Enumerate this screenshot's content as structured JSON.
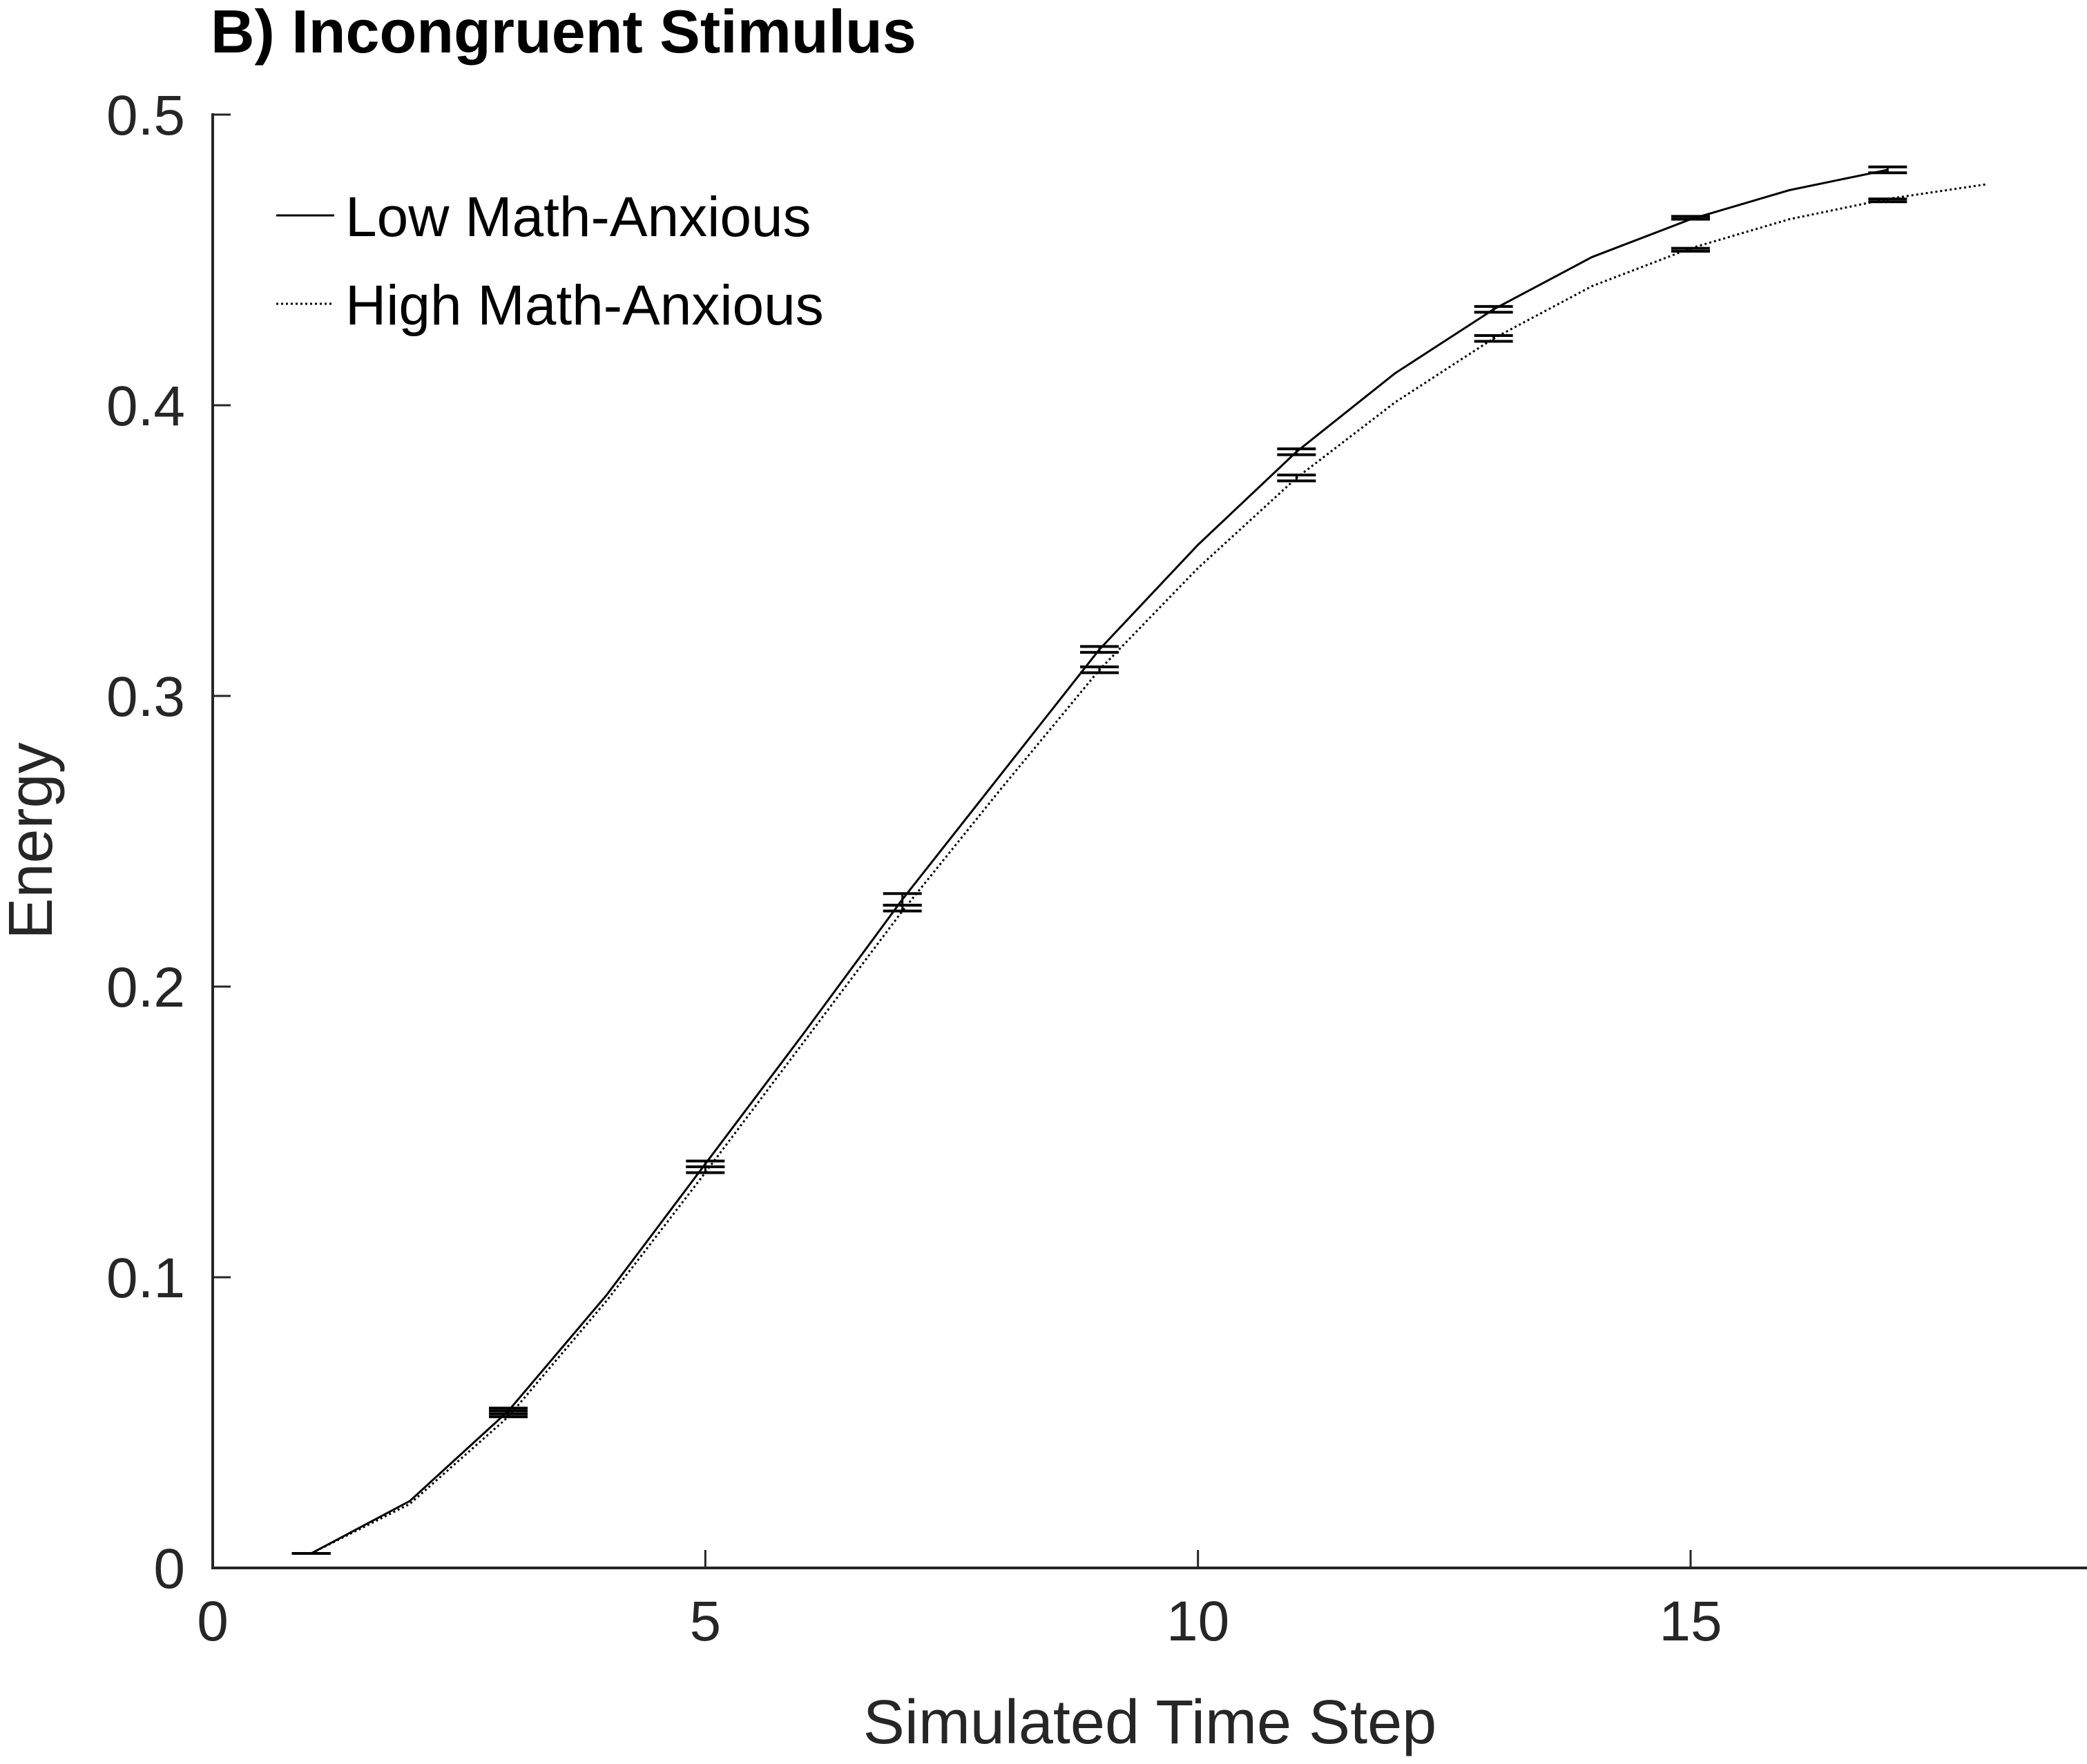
{
  "chart_data": {
    "type": "line",
    "title": "B) Incongruent Stimulus",
    "xlabel": "Simulated Time Step",
    "ylabel": "Energy",
    "xlim": [
      0,
      19
    ],
    "ylim": [
      0,
      0.5
    ],
    "xticks": [
      0,
      5,
      10,
      15
    ],
    "xtick_labels": [
      "0",
      "5",
      "10",
      "15"
    ],
    "yticks": [
      0,
      0.1,
      0.2,
      0.3,
      0.4,
      0.5
    ],
    "ytick_labels": [
      "0",
      "0.1",
      "0.2",
      "0.3",
      "0.4",
      "0.5"
    ],
    "grid": false,
    "legend_position": "top-left",
    "series": [
      {
        "name": "Low Math-Anxious",
        "style": "solid",
        "color": "#000000",
        "x": [
          1,
          2,
          3,
          4,
          5,
          6,
          7,
          8,
          9,
          10,
          11,
          12,
          13,
          14,
          15,
          16,
          17
        ],
        "y": [
          0.005,
          0.023,
          0.054,
          0.094,
          0.139,
          0.184,
          0.23,
          0.273,
          0.316,
          0.352,
          0.384,
          0.411,
          0.433,
          0.451,
          0.464,
          0.474,
          0.481
        ],
        "errorbars": [
          {
            "x": 1,
            "low": 0.005,
            "high": 0.005
          },
          {
            "x": 3,
            "low": 0.053,
            "high": 0.055
          },
          {
            "x": 5,
            "low": 0.138,
            "high": 0.14
          },
          {
            "x": 7,
            "low": 0.228,
            "high": 0.232
          },
          {
            "x": 9,
            "low": 0.315,
            "high": 0.317
          },
          {
            "x": 11,
            "low": 0.383,
            "high": 0.385
          },
          {
            "x": 13,
            "low": 0.432,
            "high": 0.434
          },
          {
            "x": 15,
            "low": 0.464,
            "high": 0.465
          },
          {
            "x": 17,
            "low": 0.48,
            "high": 0.482
          }
        ]
      },
      {
        "name": "High Math-Anxious",
        "style": "dotted",
        "color": "#000000",
        "x": [
          1,
          2,
          3,
          4,
          5,
          6,
          7,
          8,
          9,
          10,
          11,
          12,
          13,
          14,
          15,
          16,
          17,
          18
        ],
        "y": [
          0.005,
          0.022,
          0.052,
          0.092,
          0.136,
          0.181,
          0.226,
          0.268,
          0.309,
          0.344,
          0.375,
          0.401,
          0.423,
          0.441,
          0.454,
          0.464,
          0.471,
          0.476
        ],
        "errorbars": [
          {
            "x": 1,
            "low": 0.005,
            "high": 0.005
          },
          {
            "x": 3,
            "low": 0.052,
            "high": 0.054
          },
          {
            "x": 5,
            "low": 0.136,
            "high": 0.138
          },
          {
            "x": 7,
            "low": 0.226,
            "high": 0.228
          },
          {
            "x": 9,
            "low": 0.308,
            "high": 0.31
          },
          {
            "x": 11,
            "low": 0.374,
            "high": 0.376
          },
          {
            "x": 13,
            "low": 0.422,
            "high": 0.424
          },
          {
            "x": 15,
            "low": 0.453,
            "high": 0.454
          },
          {
            "x": 17,
            "low": 0.47,
            "high": 0.471
          }
        ]
      }
    ]
  }
}
